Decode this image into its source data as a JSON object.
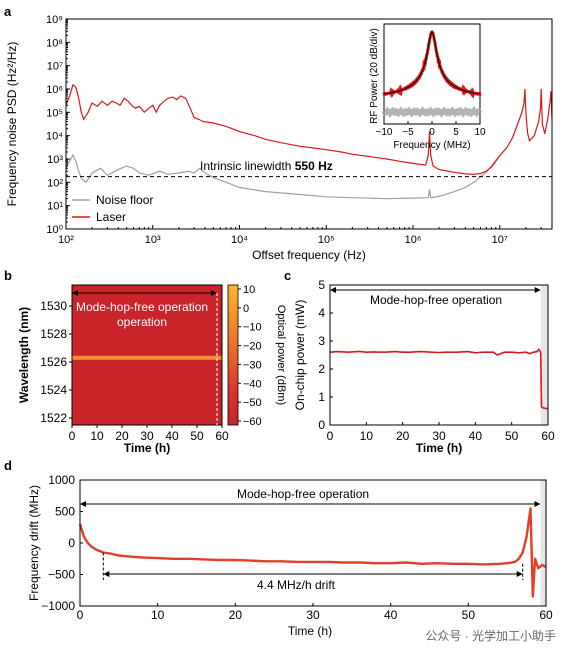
{
  "panel_labels": {
    "a": "a",
    "b": "b",
    "c": "c",
    "d": "d"
  },
  "watermark": "公众号 · 光学加工小助手",
  "chart_data": [
    {
      "panel": "a",
      "type": "line",
      "xscale": "log",
      "yscale": "log",
      "xlim": [
        100,
        40000000
      ],
      "ylim": [
        1,
        1000000000
      ],
      "xlabel": "Offset frequency (Hz)",
      "ylabel": "Frequency noise PSD (Hz²/Hz)",
      "xticks": [
        "10²",
        "10³",
        "10⁴",
        "10⁵",
        "10⁶",
        "10⁷"
      ],
      "yticks": [
        "10⁰",
        "10¹",
        "10²",
        "10³",
        "10⁴",
        "10⁵",
        "10⁶",
        "10⁷",
        "10⁸",
        "10⁹"
      ],
      "annotation": {
        "text": "Intrinsic linewidth",
        "bold": "550 Hz",
        "level": 175
      },
      "legend": [
        "Noise floor",
        "Laser"
      ],
      "colors": {
        "laser": "#d7191c",
        "floor": "#a0a0a0"
      },
      "series": [
        {
          "name": "Laser",
          "x": [
            100,
            110,
            120,
            130,
            140,
            150,
            160,
            180,
            200,
            230,
            260,
            300,
            340,
            380,
            420,
            470,
            520,
            570,
            630,
            700,
            800,
            900,
            1000,
            1100,
            1200,
            1350,
            1500,
            1700,
            1900,
            2100,
            2400,
            2700,
            3000,
            3400,
            3800,
            4300,
            5000,
            7000,
            10000,
            15000,
            20000,
            30000,
            50000,
            70000,
            100000,
            150000,
            200000,
            300000,
            500000,
            700000,
            1000000,
            1400000,
            1500000,
            1550000,
            1600000,
            1700000,
            2000000,
            3000000,
            4000000,
            5000000,
            6000000,
            7000000,
            8000000,
            9000000,
            10000000,
            12000000,
            14000000,
            16000000,
            18000000,
            19000000,
            19500000,
            20000000,
            20500000,
            21000000,
            22000000,
            25000000,
            28000000,
            29500000,
            30000000,
            30500000,
            31000000,
            33000000,
            36000000,
            38000000,
            39000000,
            40000000
          ],
          "y": [
            200000,
            500000,
            1500000,
            1200000,
            400000,
            100000,
            50000,
            100000,
            250000,
            180000,
            300000,
            200000,
            300000,
            250000,
            200000,
            400000,
            300000,
            200000,
            150000,
            180000,
            100000,
            150000,
            200000,
            100000,
            200000,
            300000,
            400000,
            450000,
            350000,
            500000,
            400000,
            150000,
            60000,
            50000,
            40000,
            38000,
            35000,
            25000,
            15000,
            10000,
            7000,
            5000,
            3500,
            3000,
            2500,
            2000,
            1600,
            1300,
            1000,
            800,
            650,
            550,
            1500,
            15000,
            1500,
            500,
            350,
            270,
            230,
            220,
            240,
            300,
            450,
            800,
            1400,
            3000,
            8000,
            30000,
            100000,
            250000,
            1000000,
            100000,
            30000,
            12000,
            6000,
            10000,
            40000,
            150000,
            1000000,
            150000,
            30000,
            12000,
            60000,
            300000,
            800000,
            50000
          ]
        },
        {
          "name": "Noise floor",
          "x": [
            100,
            110,
            120,
            130,
            140,
            150,
            170,
            200,
            250,
            300,
            400,
            500,
            600,
            700,
            900,
            1200,
            1500,
            2000,
            2600,
            3000,
            3500,
            4000,
            5000,
            7000,
            10000,
            20000,
            50000,
            100000,
            200000,
            500000,
            1000000,
            1500000,
            1550000,
            1600000,
            2000000,
            3000000,
            4000000,
            5000000,
            6000000,
            7000000,
            8000000,
            9000000,
            10000000
          ],
          "y": [
            400,
            800,
            1500,
            800,
            300,
            150,
            100,
            250,
            400,
            200,
            350,
            500,
            400,
            250,
            200,
            300,
            220,
            250,
            300,
            250,
            400,
            250,
            160,
            100,
            60,
            40,
            30,
            24,
            22,
            20,
            21,
            22,
            50,
            22,
            25,
            40,
            60,
            100,
            170,
            270,
            500,
            900,
            1400
          ]
        }
      ]
    },
    {
      "panel": "a-inset",
      "type": "line",
      "xlim": [
        -10,
        10
      ],
      "xlabel": "Frequency (MHz)",
      "ylabel": "RF Power (20 dB/div)",
      "xticks": [
        "−10",
        "−5",
        "0",
        "5",
        "10"
      ],
      "colors": {
        "signal": "#d7191c",
        "fit": "#000000",
        "floor": "#a0a0a0"
      }
    },
    {
      "panel": "b",
      "type": "heatmap",
      "xlim": [
        0,
        60
      ],
      "ylim": [
        1521.5,
        1531.5
      ],
      "xlabel": "Time (h)",
      "ylabel": "Wavelength (nm)",
      "xticks": [
        0,
        10,
        20,
        30,
        40,
        50,
        60
      ],
      "yticks": [
        1522,
        1524,
        1526,
        1528,
        1530
      ],
      "colorbar": {
        "label": "Optical power (dBm)",
        "ticks": [
          10,
          0,
          -10,
          -20,
          -30,
          -40,
          -50,
          -60
        ],
        "colors": [
          "#fcb830",
          "#f28e2b",
          "#e6642a",
          "#d8372a",
          "#c8242a"
        ]
      },
      "lasing_wavelength": 1526.3,
      "annotation": "Mode-hop-free operation",
      "span": [
        0,
        58
      ]
    },
    {
      "panel": "c",
      "type": "line",
      "xlim": [
        0,
        60
      ],
      "ylim": [
        0,
        5
      ],
      "xlabel": "Time (h)",
      "ylabel": "On-chip power (mW)",
      "xticks": [
        0,
        10,
        20,
        30,
        40,
        50,
        60
      ],
      "yticks": [
        0,
        1,
        2,
        3,
        4,
        5
      ],
      "annotation": "Mode-hop-free operation",
      "span": [
        0,
        58
      ],
      "color": "#d7191c",
      "series": [
        {
          "x": [
            0,
            2,
            5,
            8,
            10,
            12,
            15,
            18,
            20,
            22,
            25,
            28,
            30,
            32,
            35,
            38,
            40,
            42,
            45,
            46,
            47,
            48,
            50,
            52,
            54,
            55,
            56,
            57,
            57.5,
            58,
            58.2,
            58.4,
            59,
            60
          ],
          "y": [
            2.6,
            2.62,
            2.6,
            2.63,
            2.6,
            2.61,
            2.6,
            2.62,
            2.6,
            2.6,
            2.62,
            2.6,
            2.59,
            2.6,
            2.6,
            2.62,
            2.58,
            2.6,
            2.6,
            2.5,
            2.55,
            2.6,
            2.6,
            2.58,
            2.6,
            2.55,
            2.6,
            2.62,
            2.7,
            2.6,
            0.65,
            0.62,
            0.6,
            0.58
          ]
        }
      ]
    },
    {
      "panel": "d",
      "type": "line",
      "xlim": [
        0,
        60
      ],
      "ylim": [
        -1000,
        1000
      ],
      "xlabel": "Time (h)",
      "ylabel": "Frequency drift (MHz)",
      "xticks": [
        0,
        10,
        20,
        30,
        40,
        50,
        60
      ],
      "yticks": [
        -1000,
        -500,
        0,
        500,
        1000
      ],
      "annotation": "Mode-hop-free operation",
      "drift_label": "4.4 MHz/h drift",
      "drift_span": [
        3,
        57
      ],
      "span": [
        0,
        58
      ],
      "color": "#e0402a",
      "series": [
        {
          "x": [
            0,
            0.5,
            1,
            1.5,
            2,
            3,
            4,
            5,
            6,
            7,
            8,
            10,
            12,
            14,
            16,
            18,
            20,
            22,
            24,
            26,
            28,
            30,
            32,
            34,
            36,
            38,
            40,
            42,
            44,
            46,
            48,
            50,
            52,
            54,
            55,
            56,
            56.5,
            57,
            57.5,
            58,
            58.3,
            58.6,
            59,
            59.5,
            60
          ],
          "y": [
            300,
            100,
            0,
            -60,
            -100,
            -150,
            -170,
            -200,
            -210,
            -220,
            -230,
            -240,
            -250,
            -250,
            -260,
            -270,
            -270,
            -280,
            -290,
            -290,
            -300,
            -300,
            -300,
            -310,
            -310,
            -320,
            -320,
            -310,
            -330,
            -320,
            -330,
            -330,
            -340,
            -330,
            -320,
            -300,
            -250,
            -150,
            100,
            550,
            -850,
            -250,
            -400,
            -350,
            -380
          ]
        }
      ]
    }
  ]
}
